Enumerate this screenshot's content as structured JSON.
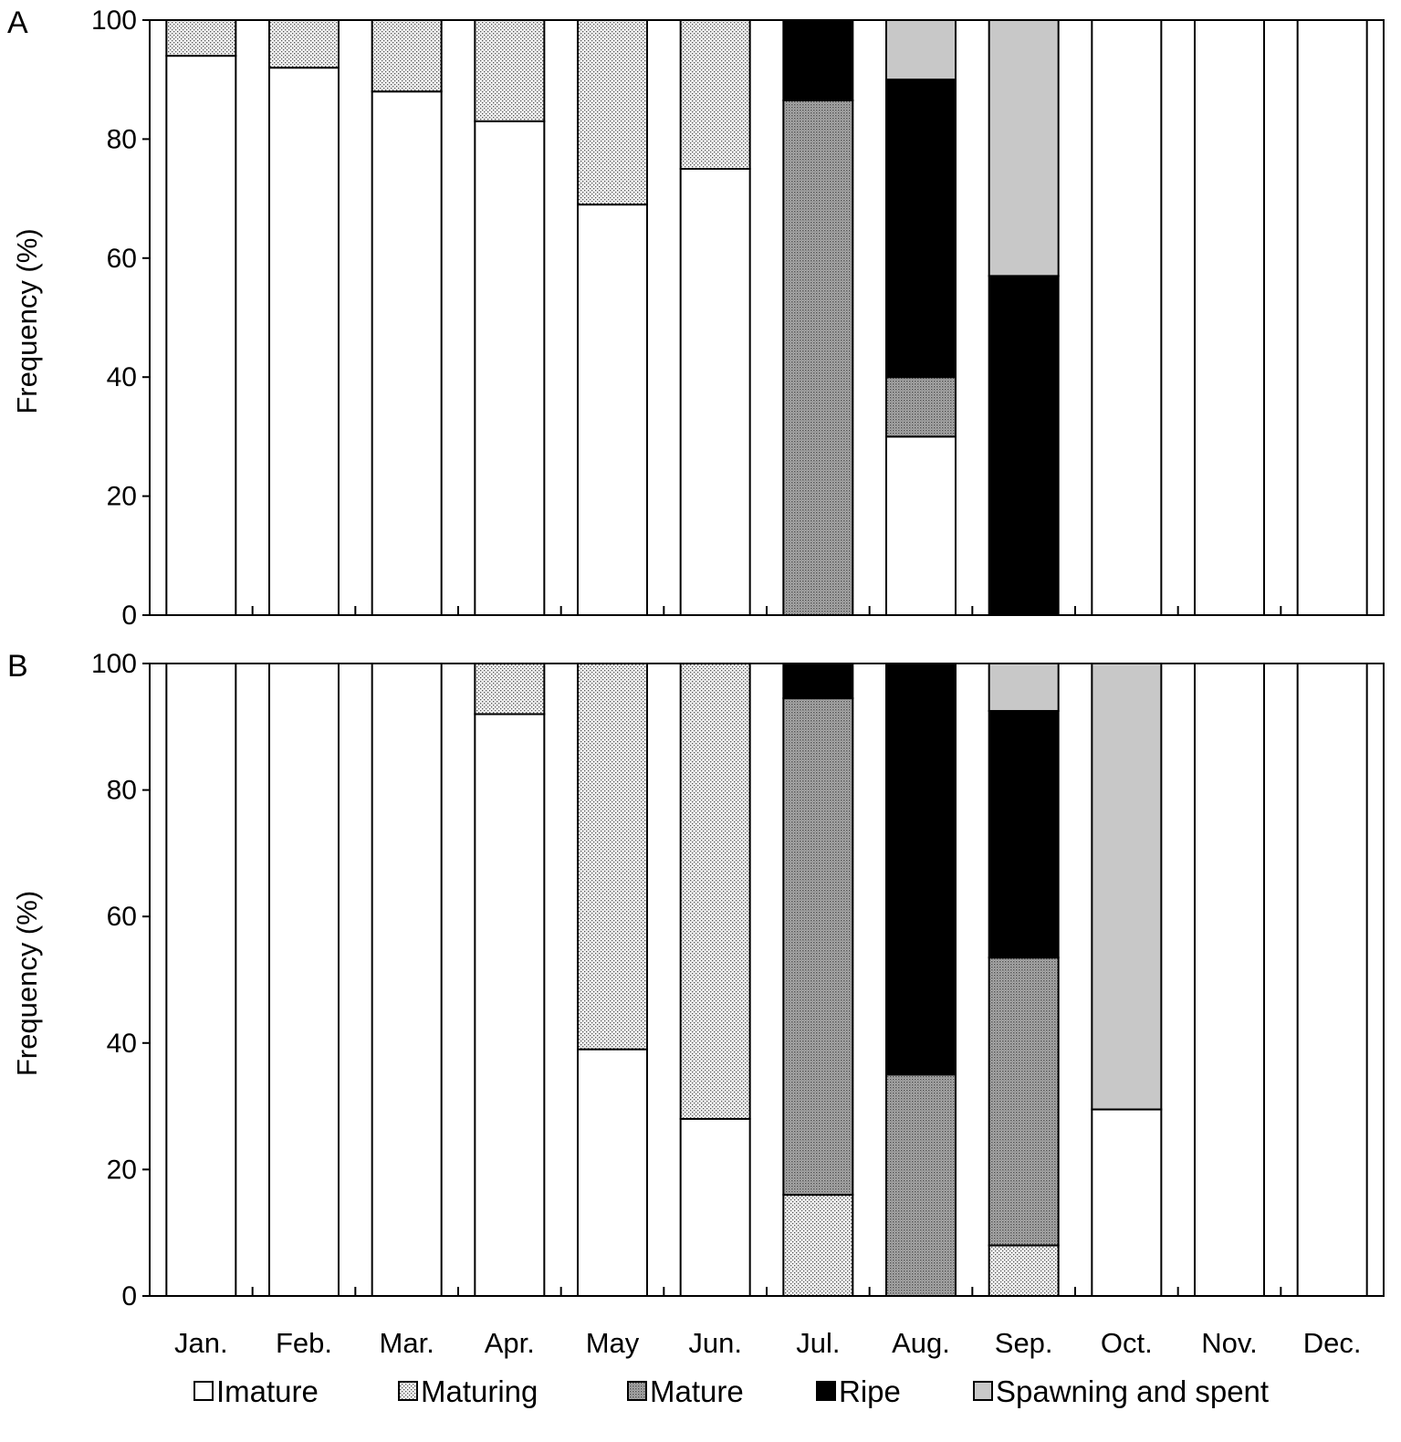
{
  "colors": {
    "Imature": "#ffffff",
    "Maturing": "#e6e6e6",
    "Mature": "#9a9a9a",
    "Ripe": "#000000",
    "Spawning and spent": "#c8c8c8"
  },
  "legend": [
    "Imature",
    "Maturing",
    "Mature",
    "Ripe",
    "Spawning and spent"
  ],
  "chart_data": [
    {
      "type": "bar",
      "stacked": true,
      "panel": "A",
      "ylabel": "Frequency (%)",
      "ylim": [
        0,
        100
      ],
      "yticks": [
        "0",
        "20",
        "40",
        "60",
        "80",
        "100"
      ],
      "categories": [
        "Jan.",
        "Feb.",
        "Mar.",
        "Apr.",
        "May",
        "Jun.",
        "Jul.",
        "Aug.",
        "Sep.",
        "Oct.",
        "Nov.",
        "Dec."
      ],
      "series": [
        {
          "name": "Imature",
          "values": [
            94,
            92,
            88,
            83,
            69,
            75,
            0,
            30,
            0,
            0,
            0,
            0
          ]
        },
        {
          "name": "Maturing",
          "values": [
            6,
            8,
            12,
            17,
            31,
            25,
            0,
            0,
            0,
            0,
            0,
            0
          ]
        },
        {
          "name": "Mature",
          "values": [
            0,
            0,
            0,
            0,
            0,
            0,
            86.5,
            10,
            0,
            0,
            0,
            0
          ]
        },
        {
          "name": "Ripe",
          "values": [
            0,
            0,
            0,
            0,
            0,
            0,
            13.5,
            50,
            57,
            0,
            0,
            0
          ]
        },
        {
          "name": "Spawning and spent",
          "values": [
            0,
            0,
            0,
            0,
            0,
            0,
            0,
            10,
            43,
            0,
            0,
            0
          ]
        }
      ]
    },
    {
      "type": "bar",
      "stacked": true,
      "panel": "B",
      "ylabel": "Frequency (%)",
      "ylim": [
        0,
        100
      ],
      "yticks": [
        "0",
        "20",
        "40",
        "60",
        "80",
        "100"
      ],
      "categories": [
        "Jan.",
        "Feb.",
        "Mar.",
        "Apr.",
        "May",
        "Jun.",
        "Jul.",
        "Aug.",
        "Sep.",
        "Oct.",
        "Nov.",
        "Dec."
      ],
      "series": [
        {
          "name": "Imature",
          "values": [
            0,
            0,
            0,
            92,
            39,
            28,
            0,
            0,
            0,
            29.5,
            0,
            0
          ]
        },
        {
          "name": "Maturing",
          "values": [
            0,
            0,
            0,
            8,
            61,
            72,
            16,
            0,
            8,
            0,
            0,
            0
          ]
        },
        {
          "name": "Mature",
          "values": [
            0,
            0,
            0,
            0,
            0,
            0,
            78.5,
            35,
            45.5,
            0,
            0,
            0
          ]
        },
        {
          "name": "Ripe",
          "values": [
            0,
            0,
            0,
            0,
            0,
            0,
            5.5,
            65,
            39,
            0,
            0,
            0
          ]
        },
        {
          "name": "Spawning and spent",
          "values": [
            0,
            0,
            0,
            0,
            0,
            0,
            0,
            0,
            7.5,
            70.5,
            0,
            0
          ]
        }
      ]
    }
  ]
}
